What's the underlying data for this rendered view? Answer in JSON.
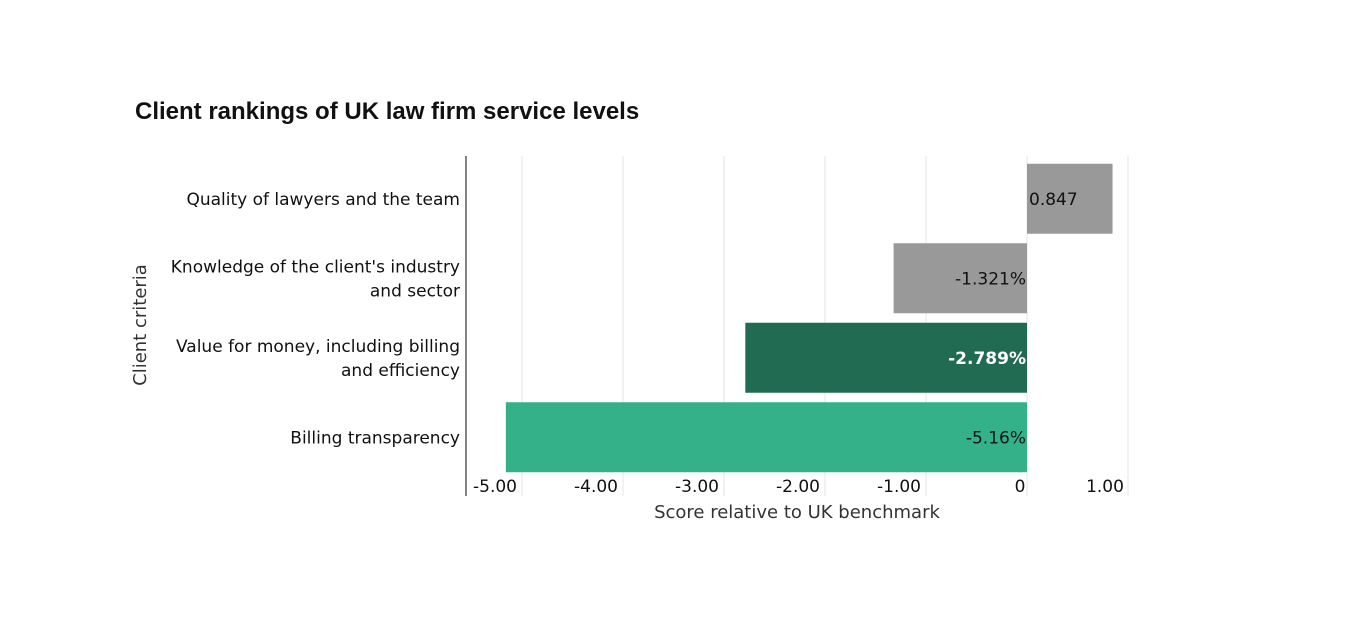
{
  "chart_data": {
    "type": "bar",
    "orientation": "horizontal",
    "title": "Client rankings of UK law firm service levels",
    "xlabel": "Score relative to UK benchmark",
    "ylabel": "Client criteria",
    "xlim": [
      -5.0,
      1.0
    ],
    "x_ticks": [
      -5,
      -4,
      -3,
      -2,
      -1,
      0,
      1
    ],
    "x_tick_labels": [
      "-5.00",
      "-4.00",
      "-3.00",
      "-2.00",
      "-1.00",
      "0",
      "1.00"
    ],
    "grid": "vertical",
    "categories": [
      [
        "Quality of lawyers and the team"
      ],
      [
        "Knowledge of the client's industry",
        "and sector"
      ],
      [
        "Value for money, including billing",
        "and efficiency"
      ],
      [
        "Billing transparency"
      ]
    ],
    "values": [
      0.847,
      -1.321,
      -2.789,
      -5.16
    ],
    "data_labels": [
      "0.847",
      "-1.321%",
      "-2.789%",
      "-5.16%"
    ],
    "colors": [
      "#999999",
      "#999999",
      "#206B51",
      "#34B189"
    ],
    "label_colors": [
      "#111111",
      "#111111",
      "#ffffff",
      "#111111"
    ],
    "label_bold": [
      false,
      false,
      true,
      false
    ]
  }
}
